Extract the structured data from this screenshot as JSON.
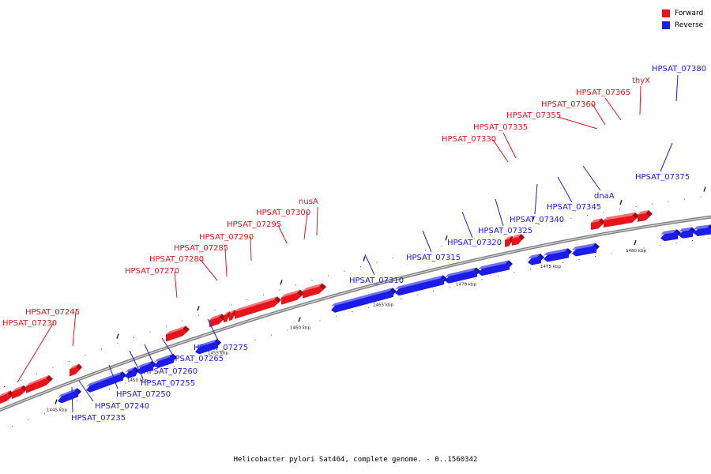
{
  "title": "Helicobacter pylori Sat464, complete genome. - 0..1560342",
  "colors": {
    "forward": "#e8141c",
    "reverse": "#1c1ce8"
  },
  "legend": [
    {
      "label": "Forward",
      "color": "#e8141c"
    },
    {
      "label": "Reverse",
      "color": "#1c1ce8"
    }
  ],
  "ticks": [
    "1445 kbp",
    "1450 kbp",
    "1455 kbp",
    "1460 kbp",
    "1465 kbp",
    "1470 kbp",
    "1475 kbp",
    "1480 kbp"
  ],
  "genes": [
    {
      "name": "HPSAT_07230",
      "strand": "forward"
    },
    {
      "name": "HPSAT_07245",
      "strand": "forward"
    },
    {
      "name": "HPSAT_07270",
      "strand": "forward"
    },
    {
      "name": "HPSAT_07280",
      "strand": "forward"
    },
    {
      "name": "HPSAT_07285",
      "strand": "forward"
    },
    {
      "name": "HPSAT_07290",
      "strand": "forward"
    },
    {
      "name": "HPSAT_07295",
      "strand": "forward"
    },
    {
      "name": "HPSAT_07300",
      "strand": "forward"
    },
    {
      "name": "nusA",
      "strand": "forward"
    },
    {
      "name": "HPSAT_07330",
      "strand": "forward"
    },
    {
      "name": "HPSAT_07335",
      "strand": "forward"
    },
    {
      "name": "HPSAT_07355",
      "strand": "forward"
    },
    {
      "name": "HPSAT_07360",
      "strand": "forward"
    },
    {
      "name": "HPSAT_07365",
      "strand": "forward"
    },
    {
      "name": "thyX",
      "strand": "forward"
    },
    {
      "name": "HPSAT_07380",
      "strand": "reverse"
    },
    {
      "name": "HPSAT_07375",
      "strand": "reverse"
    },
    {
      "name": "dnaA",
      "strand": "reverse"
    },
    {
      "name": "HPSAT_07345",
      "strand": "reverse"
    },
    {
      "name": "HPSAT_07340",
      "strand": "reverse"
    },
    {
      "name": "HPSAT_07325",
      "strand": "reverse"
    },
    {
      "name": "HPSAT_07320",
      "strand": "reverse"
    },
    {
      "name": "HPSAT_07315",
      "strand": "reverse"
    },
    {
      "name": "HPSAT_07310",
      "strand": "reverse"
    },
    {
      "name": "HPSAT_07275",
      "strand": "reverse"
    },
    {
      "name": "HPSAT_07265",
      "strand": "reverse"
    },
    {
      "name": "HPSAT_07260",
      "strand": "reverse"
    },
    {
      "name": "HPSAT_07255",
      "strand": "reverse"
    },
    {
      "name": "HPSAT_07250",
      "strand": "reverse"
    },
    {
      "name": "HPSAT_07240",
      "strand": "reverse"
    },
    {
      "name": "HPSAT_07235",
      "strand": "reverse"
    }
  ]
}
